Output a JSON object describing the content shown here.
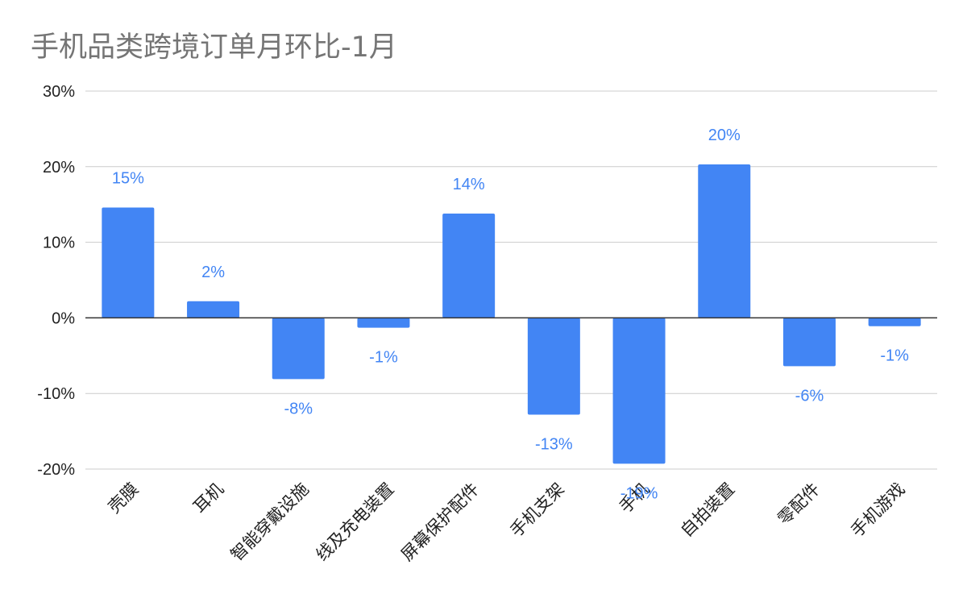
{
  "chart_data": {
    "type": "bar",
    "title": "手机品类跨境订单月环比-1月",
    "categories": [
      "壳膜",
      "耳机",
      "智能穿戴设施",
      "线及充电装置",
      "屏幕保护配件",
      "手机支架",
      "手机",
      "自拍装置",
      "零配件",
      "手机游戏"
    ],
    "series": [
      {
        "values": [
          14.6,
          2.2,
          -8.1,
          -1.3,
          13.8,
          -12.8,
          -19.3,
          20.3,
          -6.4,
          -1.1
        ],
        "labels": [
          "15%",
          "2%",
          "-8%",
          "-1%",
          "14%",
          "-13%",
          "-19%",
          "20%",
          "-6%",
          "-1%"
        ],
        "color": "#4285f4"
      }
    ],
    "ylim": [
      -20,
      30
    ],
    "yticks": [
      30,
      20,
      10,
      0,
      -10,
      -20
    ],
    "ytick_labels": [
      "30%",
      "20%",
      "10%",
      "0%",
      "-10%",
      "-20%"
    ],
    "xlabel": "",
    "ylabel": "",
    "grid": true,
    "legend": "none"
  }
}
